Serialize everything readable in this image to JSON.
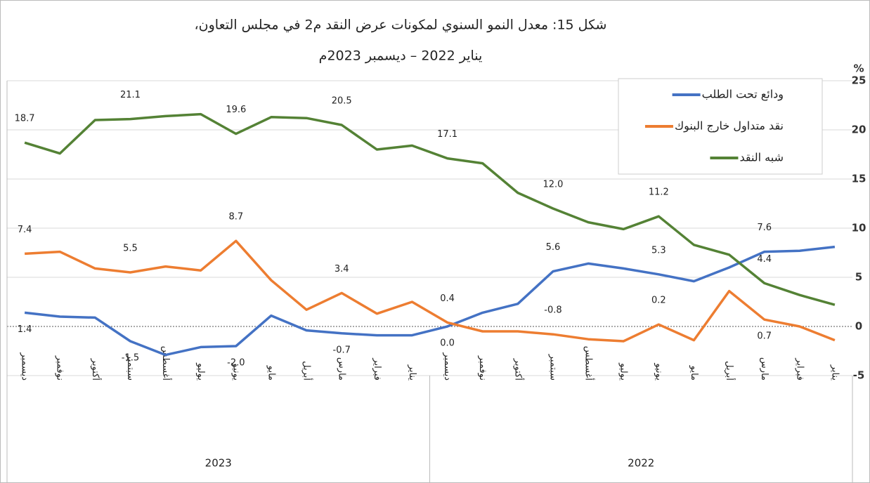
{
  "chart_data": {
    "type": "line",
    "title": "شكل 15: معدل النمو السنوي لمكونات عرض النقد م2 في مجلس التعاون،",
    "subtitle": "يناير 2022 – ديسمبر 2023م",
    "y_axis_label": "%",
    "categories": [
      "ديسمبر",
      "نوفمبر",
      "أكتوبر",
      "سبتمبر",
      "أغسطس",
      "يوليو",
      "يونيو",
      "مايو",
      "أبريل",
      "مارس",
      "فبراير",
      "يناير",
      "ديسمبر",
      "نوفمبر",
      "أكتوبر",
      "سبتمبر",
      "أغسطس",
      "يوليو",
      "يونيو",
      "مايو",
      "أبريل",
      "مارس",
      "فبراير",
      "يناير"
    ],
    "year_groups": [
      "2023",
      "2022"
    ],
    "ylim": [
      -5,
      25
    ],
    "yticks": [
      -5,
      0,
      5,
      10,
      15,
      20,
      25
    ],
    "grid": true,
    "legend": "top-right",
    "series": [
      {
        "name": "ودائع تحت الطلب",
        "color": "#4472c4",
        "values": [
          1.4,
          1.0,
          0.9,
          -1.5,
          -2.9,
          -2.1,
          -2.0,
          1.1,
          -0.4,
          -0.7,
          -0.9,
          -0.9,
          0.0,
          1.4,
          2.3,
          5.6,
          6.4,
          5.9,
          5.3,
          4.6,
          6.0,
          7.6,
          7.7,
          8.1
        ],
        "value_labels": [
          "1.4",
          null,
          null,
          "-1.5",
          null,
          null,
          "-2.0",
          null,
          null,
          "-0.7",
          null,
          null,
          "0.0",
          null,
          null,
          "5.6",
          null,
          null,
          "5.3",
          null,
          null,
          "7.6",
          null,
          null
        ]
      },
      {
        "name": "نقد متداول خارج البنوك",
        "color": "#ed7d31",
        "values": [
          7.4,
          7.6,
          5.9,
          5.5,
          6.1,
          5.7,
          8.7,
          4.7,
          1.7,
          3.4,
          1.3,
          2.5,
          0.4,
          -0.5,
          -0.5,
          -0.8,
          -1.3,
          -1.5,
          0.2,
          -1.4,
          3.6,
          0.7,
          0.0,
          -1.4
        ],
        "value_labels": [
          "7.4",
          null,
          null,
          "5.5",
          null,
          null,
          "8.7",
          null,
          null,
          "3.4",
          null,
          null,
          "0.4",
          null,
          null,
          "-0.8",
          null,
          null,
          "0.2",
          null,
          null,
          "0.7",
          null,
          null
        ]
      },
      {
        "name": "شبه النقد",
        "color": "#548235",
        "values": [
          18.7,
          17.6,
          21.0,
          21.1,
          21.4,
          21.6,
          19.6,
          21.3,
          21.2,
          20.5,
          18.0,
          18.4,
          17.1,
          16.6,
          13.6,
          12.0,
          10.6,
          9.9,
          11.2,
          8.3,
          7.3,
          4.4,
          3.2,
          2.2
        ],
        "value_labels": [
          "18.7",
          null,
          null,
          "21.1",
          null,
          null,
          "19.6",
          null,
          null,
          "20.5",
          null,
          null,
          "17.1",
          null,
          null,
          "12.0",
          null,
          null,
          "11.2",
          null,
          null,
          "4.4",
          null,
          null
        ]
      }
    ]
  }
}
